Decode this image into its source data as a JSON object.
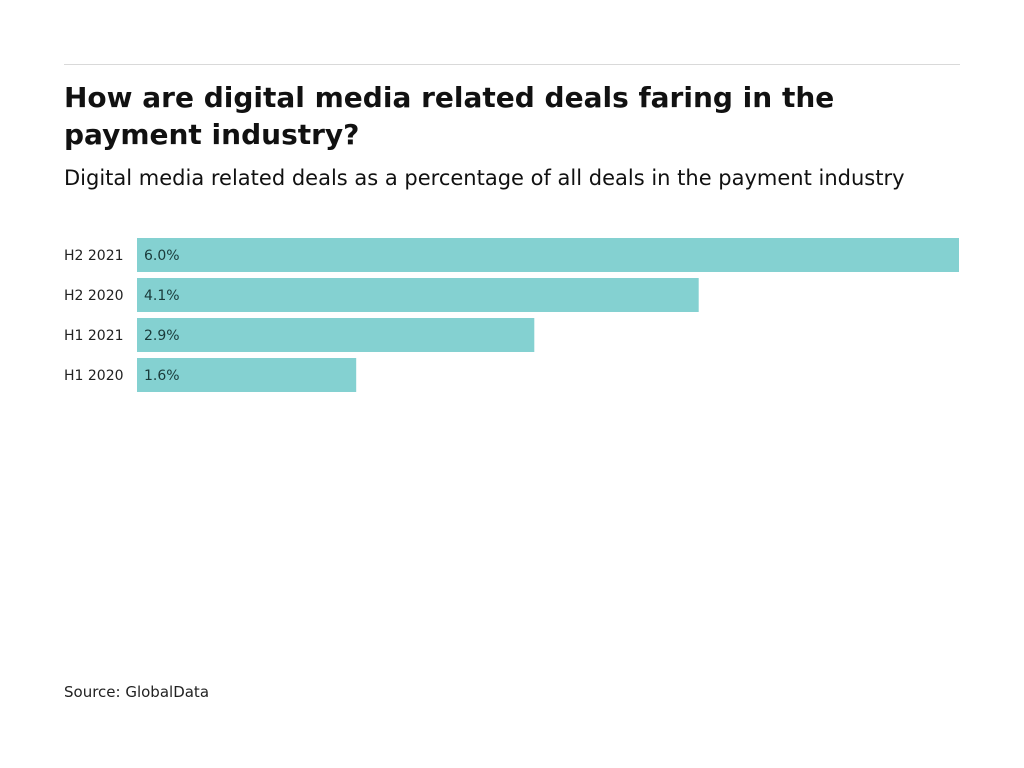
{
  "chart_data": {
    "type": "bar",
    "orientation": "horizontal",
    "title": "How are digital media related deals faring in the payment industry?",
    "subtitle": "Digital media related deals as a percentage of all deals in the payment industry",
    "categories": [
      "H2 2021",
      "H2 2020",
      "H1 2021",
      "H1 2020"
    ],
    "values": [
      6.0,
      4.1,
      2.9,
      1.6
    ],
    "value_labels": [
      "6.0%",
      "4.1%",
      "2.9%",
      "1.6%"
    ],
    "xlim": [
      0,
      6.0
    ],
    "grid": false,
    "legend": "none",
    "bar_color": "#84d1d1",
    "source": "Source: GlobalData"
  }
}
